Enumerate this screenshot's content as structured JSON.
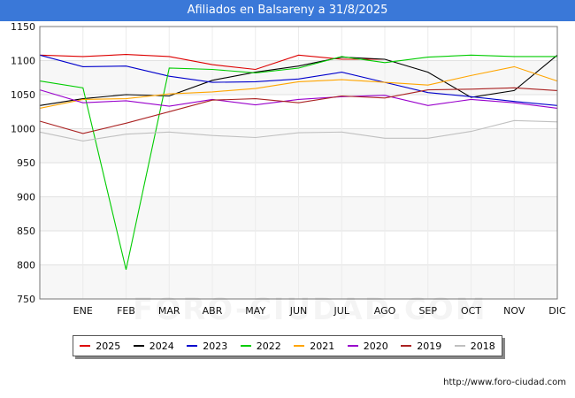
{
  "header": {
    "title": "Afiliados en Balsareny a 31/8/2025"
  },
  "footer": {
    "source": "http://www.foro-ciudad.com",
    "watermark": "FORO-CIUDAD.COM"
  },
  "chart_data": {
    "type": "line",
    "title": "Afiliados en Balsareny a 31/8/2025",
    "xlabel": "",
    "ylabel": "",
    "categories": [
      "",
      "ENE",
      "FEB",
      "MAR",
      "ABR",
      "MAY",
      "JUN",
      "JUL",
      "AGO",
      "SEP",
      "OCT",
      "NOV",
      "DIC"
    ],
    "ylim": [
      750,
      1150
    ],
    "yticks": [
      750,
      800,
      850,
      900,
      950,
      1000,
      1050,
      1100,
      1150
    ],
    "grid": true,
    "legend_position": "bottom",
    "series": [
      {
        "name": "2025",
        "color": "#dd0000",
        "values": [
          1108,
          1106,
          1109,
          1106,
          1094,
          1087,
          1108,
          1102,
          1102,
          null,
          null,
          null,
          null
        ]
      },
      {
        "name": "2024",
        "color": "#000000",
        "values": [
          1034,
          1044,
          1050,
          1048,
          1071,
          1083,
          1092,
          1105,
          1102,
          1083,
          1046,
          1056,
          1108
        ]
      },
      {
        "name": "2023",
        "color": "#0000cc",
        "values": [
          1108,
          1091,
          1092,
          1077,
          1068,
          1069,
          1073,
          1083,
          1068,
          1053,
          1047,
          1040,
          1034
        ]
      },
      {
        "name": "2022",
        "color": "#00cc00",
        "values": [
          1070,
          1060,
          793,
          1089,
          1087,
          1082,
          1089,
          1106,
          1097,
          1105,
          1108,
          1106,
          1106
        ]
      },
      {
        "name": "2021",
        "color": "#ffa500",
        "values": [
          1030,
          1043,
          1044,
          1051,
          1054,
          1059,
          1069,
          1072,
          1068,
          1064,
          1078,
          1091,
          1070
        ]
      },
      {
        "name": "2020",
        "color": "#9900cc",
        "values": [
          1057,
          1038,
          1041,
          1033,
          1043,
          1035,
          1043,
          1047,
          1049,
          1034,
          1043,
          1038,
          1030
        ]
      },
      {
        "name": "2019",
        "color": "#aa2222",
        "values": [
          1011,
          993,
          1008,
          1025,
          1042,
          1044,
          1038,
          1048,
          1045,
          1057,
          1058,
          1060,
          1056
        ]
      },
      {
        "name": "2018",
        "color": "#c0c0c0",
        "values": [
          995,
          982,
          992,
          995,
          990,
          987,
          994,
          995,
          986,
          986,
          996,
          1012,
          1010
        ]
      }
    ]
  }
}
